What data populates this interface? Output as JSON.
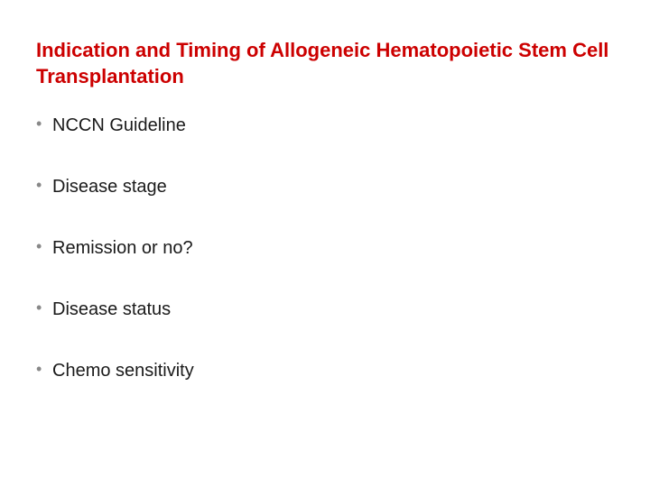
{
  "slide": {
    "title": "Indication and Timing of Allogeneic Hematopoietic Stem Cell Transplantation",
    "title_color": "#cc0000",
    "title_fontsize": 22,
    "title_fontweight": "bold",
    "background_color": "#ffffff",
    "bullets": {
      "items": [
        "NCCN Guideline",
        "Disease stage",
        "Remission or no?",
        "Disease status",
        "Chemo sensitivity"
      ],
      "text_color": "#1a1a1a",
      "bullet_marker_color": "#888888",
      "fontsize": 20,
      "item_spacing": 44
    }
  }
}
